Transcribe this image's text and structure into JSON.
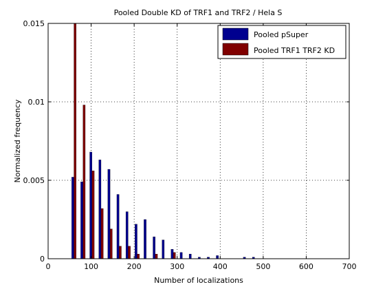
{
  "chart_data": {
    "type": "bar",
    "title": "Pooled Double KD of TRF1 and TRF2 / Hela S",
    "xlabel": "Number of localizations",
    "ylabel": "Normalized frequency",
    "xlim": [
      0,
      700
    ],
    "ylim": [
      0,
      0.015
    ],
    "xticks": [
      0,
      100,
      200,
      300,
      400,
      500,
      600,
      700
    ],
    "xtick_labels": [
      "0",
      "100",
      "200",
      "300",
      "400",
      "500",
      "600",
      "700"
    ],
    "yticks": [
      0,
      0.005,
      0.01,
      0.015
    ],
    "ytick_labels": [
      "0",
      "0.005",
      "0.01",
      "0.015"
    ],
    "grid": true,
    "legend_position": "top-right",
    "bin_centers": [
      60,
      81,
      102,
      123,
      144,
      165,
      186,
      207,
      228,
      249,
      270,
      291,
      312,
      333,
      354,
      375,
      396,
      417,
      438,
      459,
      480
    ],
    "series": [
      {
        "name": "Pooled pSuper",
        "color": "#00008F",
        "values": [
          0.0052,
          0.0049,
          0.0068,
          0.0063,
          0.0057,
          0.0041,
          0.003,
          0.0022,
          0.0025,
          0.0014,
          0.0012,
          0.0006,
          0.0004,
          0.0003,
          0.0001,
          0.0001,
          0.0002,
          0.0,
          0.0,
          0.0001,
          0.0001
        ]
      },
      {
        "name": "Pooled TRF1 TRF2 KD",
        "color": "#800000",
        "values": [
          0.0152,
          0.0098,
          0.0056,
          0.0032,
          0.0019,
          0.0008,
          0.0008,
          0.0003,
          0.0,
          0.0003,
          0.0,
          0.0004,
          0.0,
          0.0,
          0.0,
          0.0,
          0.0,
          0.0,
          0.0,
          0.0,
          0.0
        ]
      }
    ]
  }
}
